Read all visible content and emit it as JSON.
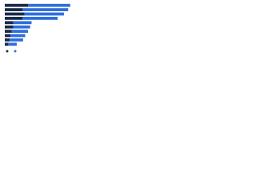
{
  "chart_data": {
    "type": "stacked-bar-horizontal",
    "categories": [
      null,
      null,
      null,
      null,
      null,
      null,
      null,
      null,
      null,
      null
    ],
    "series": [
      {
        "name": null,
        "color": "#1b2a49",
        "values": [
          33,
          25,
          28,
          25,
          12,
          12,
          10,
          8,
          7,
          5
        ]
      },
      {
        "name": null,
        "color": "#2e6fdc",
        "values": [
          60,
          65,
          56,
          50,
          26,
          24,
          23,
          21,
          19,
          12
        ]
      }
    ],
    "xlim": [
      0,
      100
    ]
  }
}
